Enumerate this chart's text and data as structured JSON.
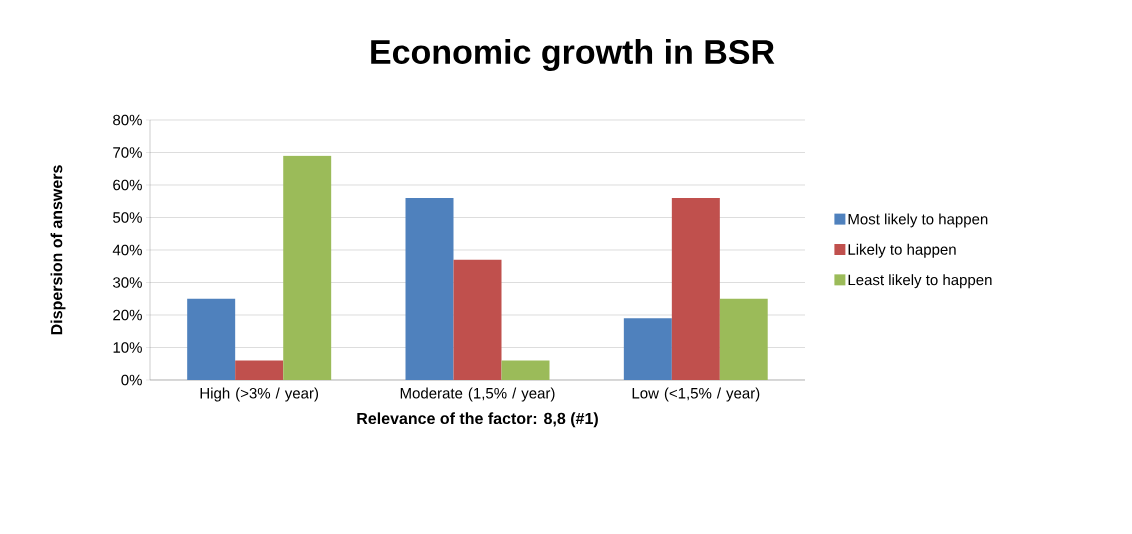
{
  "chart_data": {
    "type": "bar",
    "title": "Economic growth in BSR",
    "ylabel": "Dispersion of answers",
    "xlabel": "Relevance of the factor: 8,8 (#1)",
    "categories": [
      "High (>3% / year)",
      "Moderate (1,5% / year)",
      "Low (<1,5% / year)"
    ],
    "series": [
      {
        "name": "Most likely to happen",
        "color": "#4f81bd",
        "values": [
          25,
          56,
          19
        ]
      },
      {
        "name": "Likely to happen",
        "color": "#c0504d",
        "values": [
          6,
          37,
          56
        ]
      },
      {
        "name": "Least likely to happen",
        "color": "#9bbb59",
        "values": [
          69,
          6,
          25
        ]
      }
    ],
    "ylim": [
      0,
      80
    ],
    "yticks": [
      {
        "value": 0,
        "label": "0%"
      },
      {
        "value": 10,
        "label": "10%"
      },
      {
        "value": 20,
        "label": "20%"
      },
      {
        "value": 30,
        "label": "30%"
      },
      {
        "value": 40,
        "label": "40%"
      },
      {
        "value": 50,
        "label": "50%"
      },
      {
        "value": 60,
        "label": "60%"
      },
      {
        "value": 70,
        "label": "70%"
      },
      {
        "value": 80,
        "label": "80%"
      }
    ],
    "grid": "y",
    "legend": "right"
  }
}
